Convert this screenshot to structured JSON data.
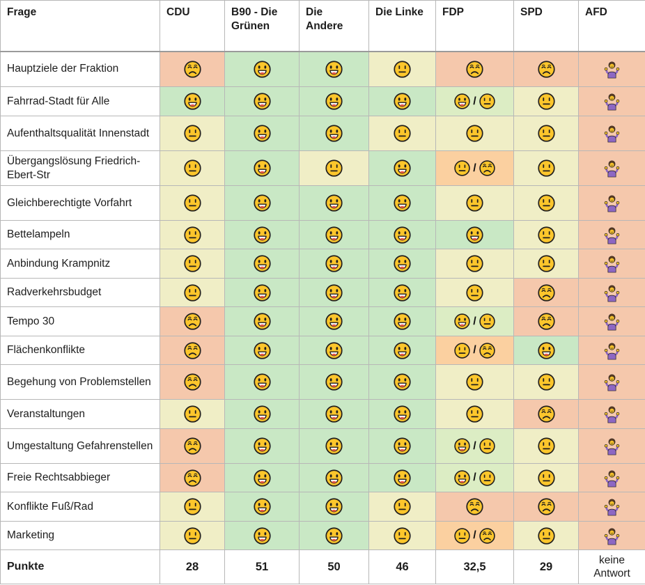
{
  "colors": {
    "green": "#c9e8c5",
    "lightgreen": "#dcedc4",
    "yellow": "#f0eec6",
    "orange": "#fbd0a0",
    "salmon": "#f5c8ac",
    "grid": "#b7b7b7",
    "face_yellow": "#fcc62c",
    "face_outline": "#211f1e",
    "tongue_red": "#ea5a47",
    "shirt_purple": "#8d67c3",
    "hair_brown": "#6b4226"
  },
  "icons": {
    "happy": "happy-face-icon",
    "neutral": "neutral-face-icon",
    "sad": "sad-face-icon",
    "shrug": "person-shrugging-icon"
  },
  "table": {
    "combo_separator": "/",
    "header": {
      "question_column": "Frage",
      "parties": [
        "CDU",
        "B90 - Die Grünen",
        "Die Andere",
        "Die Linke",
        "FDP",
        "SPD",
        "AFD"
      ]
    },
    "rows": [
      {
        "question": "Hauptziele der Fraktion",
        "cells": [
          "sad:salmon",
          "happy:green",
          "happy:green",
          "neutral:yellow",
          "sad:salmon",
          "sad:salmon",
          "shrug:salmon"
        ]
      },
      {
        "question": "Fahrrad-Stadt für Alle",
        "cells": [
          "happy:green",
          "happy:green",
          "happy:green",
          "happy:green",
          "happy+neutral:lightgreen",
          "neutral:yellow",
          "shrug:salmon"
        ]
      },
      {
        "question": "Aufenthaltsqualität Innenstadt",
        "cells": [
          "neutral:yellow",
          "happy:green",
          "happy:green",
          "neutral:yellow",
          "neutral:yellow",
          "neutral:yellow",
          "shrug:salmon"
        ]
      },
      {
        "question": "Übergangslösung Friedrich-Ebert-Str",
        "cells": [
          "neutral:yellow",
          "happy:green",
          "neutral:yellow",
          "happy:green",
          "neutral+sad:orange",
          "neutral:yellow",
          "shrug:salmon"
        ]
      },
      {
        "question": "Gleichberechtigte Vorfahrt",
        "cells": [
          "neutral:yellow",
          "happy:green",
          "happy:green",
          "happy:green",
          "neutral:yellow",
          "neutral:yellow",
          "shrug:salmon"
        ]
      },
      {
        "question": "Bettelampeln",
        "cells": [
          "neutral:yellow",
          "happy:green",
          "happy:green",
          "happy:green",
          "happy:green",
          "neutral:yellow",
          "shrug:salmon"
        ]
      },
      {
        "question": "Anbindung Krampnitz",
        "cells": [
          "neutral:yellow",
          "happy:green",
          "happy:green",
          "happy:green",
          "neutral:yellow",
          "neutral:yellow",
          "shrug:salmon"
        ]
      },
      {
        "question": "Radverkehrsbudget",
        "cells": [
          "neutral:yellow",
          "happy:green",
          "happy:green",
          "happy:green",
          "neutral:yellow",
          "sad:salmon",
          "shrug:salmon"
        ]
      },
      {
        "question": "Tempo 30",
        "cells": [
          "sad:salmon",
          "happy:green",
          "happy:green",
          "happy:green",
          "happy+neutral:lightgreen",
          "sad:salmon",
          "shrug:salmon"
        ]
      },
      {
        "question": "Flächenkonflikte",
        "cells": [
          "sad:salmon",
          "happy:green",
          "happy:green",
          "happy:green",
          "neutral+sad:orange",
          "happy:green",
          "shrug:salmon"
        ]
      },
      {
        "question": "Begehung von Problemstellen",
        "cells": [
          "sad:salmon",
          "happy:green",
          "happy:green",
          "happy:green",
          "neutral:yellow",
          "neutral:yellow",
          "shrug:salmon"
        ]
      },
      {
        "question": "Veranstaltungen",
        "cells": [
          "neutral:yellow",
          "happy:green",
          "happy:green",
          "happy:green",
          "neutral:yellow",
          "sad:salmon",
          "shrug:salmon"
        ]
      },
      {
        "question": "Umgestaltung Gefahrenstellen",
        "cells": [
          "sad:salmon",
          "happy:green",
          "happy:green",
          "happy:green",
          "happy+neutral:lightgreen",
          "neutral:yellow",
          "shrug:salmon"
        ]
      },
      {
        "question": "Freie Rechtsabbieger",
        "cells": [
          "sad:salmon",
          "happy:green",
          "happy:green",
          "happy:green",
          "happy+neutral:lightgreen",
          "neutral:yellow",
          "shrug:salmon"
        ]
      },
      {
        "question": "Konflikte Fuß/Rad",
        "cells": [
          "neutral:yellow",
          "happy:green",
          "happy:green",
          "neutral:yellow",
          "sad:salmon",
          "sad:salmon",
          "shrug:salmon"
        ]
      },
      {
        "question": "Marketing",
        "cells": [
          "neutral:yellow",
          "happy:green",
          "happy:green",
          "neutral:yellow",
          "neutral+sad:orange",
          "neutral:yellow",
          "shrug:salmon"
        ]
      }
    ],
    "footer": {
      "label": "Punkte",
      "values": [
        "28",
        "51",
        "50",
        "46",
        "32,5",
        "29",
        "keine Antwort"
      ]
    }
  },
  "chart_data": {
    "type": "table",
    "title": "",
    "columns": [
      "Frage",
      "CDU",
      "B90 - Die Grünen",
      "Die Andere",
      "Die Linke",
      "FDP",
      "SPD",
      "AFD"
    ],
    "rating_legend": {
      "positive": "happy face / green",
      "neutral": "neutral face / yellow",
      "negative": "sad face / salmon",
      "no_answer": "person shrugging / salmon"
    },
    "rows": [
      {
        "frage": "Hauptziele der Fraktion",
        "ratings": [
          "negative",
          "positive",
          "positive",
          "neutral",
          "negative",
          "negative",
          "no_answer"
        ]
      },
      {
        "frage": "Fahrrad-Stadt für Alle",
        "ratings": [
          "positive",
          "positive",
          "positive",
          "positive",
          "positive/neutral",
          "neutral",
          "no_answer"
        ]
      },
      {
        "frage": "Aufenthaltsqualität Innenstadt",
        "ratings": [
          "neutral",
          "positive",
          "positive",
          "neutral",
          "neutral",
          "neutral",
          "no_answer"
        ]
      },
      {
        "frage": "Übergangslösung Friedrich-Ebert-Str",
        "ratings": [
          "neutral",
          "positive",
          "neutral",
          "positive",
          "neutral/negative",
          "neutral",
          "no_answer"
        ]
      },
      {
        "frage": "Gleichberechtigte Vorfahrt",
        "ratings": [
          "neutral",
          "positive",
          "positive",
          "positive",
          "neutral",
          "neutral",
          "no_answer"
        ]
      },
      {
        "frage": "Bettelampeln",
        "ratings": [
          "neutral",
          "positive",
          "positive",
          "positive",
          "positive",
          "neutral",
          "no_answer"
        ]
      },
      {
        "frage": "Anbindung Krampnitz",
        "ratings": [
          "neutral",
          "positive",
          "positive",
          "positive",
          "neutral",
          "neutral",
          "no_answer"
        ]
      },
      {
        "frage": "Radverkehrsbudget",
        "ratings": [
          "neutral",
          "positive",
          "positive",
          "positive",
          "neutral",
          "negative",
          "no_answer"
        ]
      },
      {
        "frage": "Tempo 30",
        "ratings": [
          "negative",
          "positive",
          "positive",
          "positive",
          "positive/neutral",
          "negative",
          "no_answer"
        ]
      },
      {
        "frage": "Flächenkonflikte",
        "ratings": [
          "negative",
          "positive",
          "positive",
          "positive",
          "neutral/negative",
          "positive",
          "no_answer"
        ]
      },
      {
        "frage": "Begehung von Problemstellen",
        "ratings": [
          "negative",
          "positive",
          "positive",
          "positive",
          "neutral",
          "neutral",
          "no_answer"
        ]
      },
      {
        "frage": "Veranstaltungen",
        "ratings": [
          "neutral",
          "positive",
          "positive",
          "positive",
          "neutral",
          "negative",
          "no_answer"
        ]
      },
      {
        "frage": "Umgestaltung Gefahrenstellen",
        "ratings": [
          "negative",
          "positive",
          "positive",
          "positive",
          "positive/neutral",
          "neutral",
          "no_answer"
        ]
      },
      {
        "frage": "Freie Rechtsabbieger",
        "ratings": [
          "negative",
          "positive",
          "positive",
          "positive",
          "positive/neutral",
          "neutral",
          "no_answer"
        ]
      },
      {
        "frage": "Konflikte Fuß/Rad",
        "ratings": [
          "neutral",
          "positive",
          "positive",
          "neutral",
          "negative",
          "negative",
          "no_answer"
        ]
      },
      {
        "frage": "Marketing",
        "ratings": [
          "neutral",
          "positive",
          "positive",
          "neutral",
          "neutral/negative",
          "neutral",
          "no_answer"
        ]
      }
    ],
    "points_row": {
      "label": "Punkte",
      "values": [
        "28",
        "51",
        "50",
        "46",
        "32,5",
        "29",
        "keine Antwort"
      ]
    }
  }
}
